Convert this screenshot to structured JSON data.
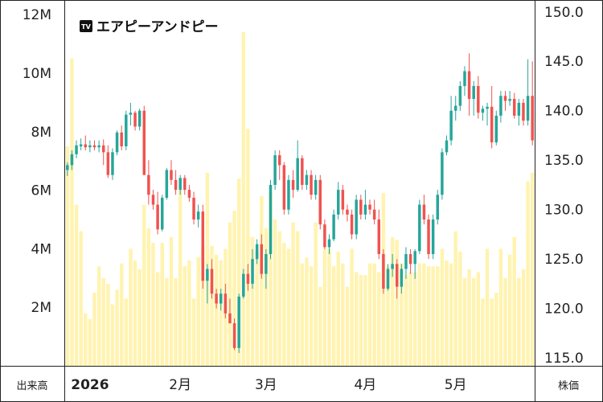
{
  "brand": {
    "name": "エアピーアンドピー",
    "logo_text": "TV",
    "logo_icon": "tradingview-logo-icon"
  },
  "colors": {
    "up": "#26a69a",
    "down": "#ef5350",
    "volume": "#fff3b0",
    "grid": "#222222",
    "background": "#ffffff"
  },
  "chart_data": {
    "type": "candlestick",
    "title": "エアピーアンドピー",
    "xlabel": "",
    "left_axis_label": "出来高",
    "right_axis_label": "株価",
    "left_ticks": [
      "2M",
      "4M",
      "6M",
      "8M",
      "10M",
      "12M"
    ],
    "left_tick_values": [
      2,
      4,
      6,
      8,
      10,
      12
    ],
    "volume_range": [
      0,
      12.5
    ],
    "right_ticks": [
      "115.0",
      "120.0",
      "125.0",
      "130.0",
      "135.0",
      "140.0",
      "145.0",
      "150.0"
    ],
    "right_tick_values": [
      115,
      120,
      125,
      130,
      135,
      140,
      145,
      150
    ],
    "price_range": [
      114.2,
      151.2
    ],
    "x_ticks": [
      {
        "label": "2026",
        "index": 5,
        "bold": true
      },
      {
        "label": "2月",
        "index": 25
      },
      {
        "label": "3月",
        "index": 44
      },
      {
        "label": "4月",
        "index": 66
      },
      {
        "label": "5月",
        "index": 86
      }
    ],
    "ohlc": [
      [
        134,
        134.8,
        133.4,
        134.5
      ],
      [
        134.5,
        136,
        134,
        135.6
      ],
      [
        135.6,
        137,
        135.2,
        136.5
      ],
      [
        136.4,
        137.2,
        136,
        136.6
      ],
      [
        136.6,
        137.5,
        136,
        136.3
      ],
      [
        136.3,
        137,
        135.8,
        136.5
      ],
      [
        136.5,
        137,
        136,
        136.3
      ],
      [
        136.3,
        137,
        135.8,
        136.5
      ],
      [
        136.5,
        137.1,
        134.5,
        135.8
      ],
      [
        135.8,
        136.5,
        133.2,
        133.5
      ],
      [
        133.5,
        136.2,
        133,
        135.8
      ],
      [
        135.8,
        138,
        135.5,
        137.8
      ],
      [
        137.8,
        138.5,
        136,
        136.4
      ],
      [
        136.4,
        140,
        136,
        139.6
      ],
      [
        139.6,
        140.8,
        138.5,
        139.8
      ],
      [
        139.8,
        140,
        138,
        138.4
      ],
      [
        138.4,
        140.2,
        138,
        140
      ],
      [
        140,
        140.5,
        133.5,
        133.5
      ],
      [
        133.5,
        135,
        130.5,
        131.5
      ],
      [
        131.5,
        132,
        130,
        130.5
      ],
      [
        130.5,
        131.8,
        127.5,
        128
      ],
      [
        128,
        131.5,
        127.8,
        131.2
      ],
      [
        131.2,
        134.2,
        131,
        134
      ],
      [
        134,
        135,
        132.5,
        133
      ],
      [
        133,
        134,
        131.5,
        132
      ],
      [
        132,
        133.5,
        131.5,
        133.2
      ],
      [
        133.2,
        133.5,
        131.5,
        132
      ],
      [
        132,
        132.5,
        130.8,
        131.2
      ],
      [
        131.2,
        131.8,
        128.5,
        129
      ],
      [
        129,
        130.5,
        128.2,
        129.8
      ],
      [
        129.8,
        130.5,
        122,
        122.8
      ],
      [
        122.8,
        124.5,
        120.5,
        124
      ],
      [
        124,
        125,
        121,
        121.5
      ],
      [
        121.5,
        122,
        120,
        120.5
      ],
      [
        120.5,
        122,
        119.8,
        121.5
      ],
      [
        121.5,
        122.5,
        119,
        119.5
      ],
      [
        119.5,
        121,
        118.5,
        118.5
      ],
      [
        118.5,
        119,
        115.8,
        116
      ],
      [
        116,
        121.5,
        115.5,
        121.2
      ],
      [
        121.2,
        124,
        121,
        123.5
      ],
      [
        123.5,
        124.5,
        121.8,
        122.5
      ],
      [
        122.5,
        126,
        122,
        125
      ],
      [
        125,
        127,
        124.5,
        126.5
      ],
      [
        126.5,
        127.5,
        123,
        123.5
      ],
      [
        123.5,
        126,
        122,
        125.5
      ],
      [
        125.5,
        133,
        125,
        132.5
      ],
      [
        132.5,
        136,
        132,
        135.5
      ],
      [
        135.5,
        136,
        133,
        134.5
      ],
      [
        134.5,
        134.8,
        129.5,
        130
      ],
      [
        130,
        133.5,
        129.5,
        133
      ],
      [
        133,
        134,
        131.2,
        132
      ],
      [
        132,
        137,
        131.8,
        135.2
      ],
      [
        135.2,
        135.5,
        132,
        132.5
      ],
      [
        132.5,
        134,
        132,
        133.5
      ],
      [
        133.5,
        134,
        131,
        131.5
      ],
      [
        131.5,
        133.5,
        131,
        133
      ],
      [
        133,
        133.5,
        128,
        128.5
      ],
      [
        128.5,
        129,
        126,
        126.2
      ],
      [
        126.2,
        127.5,
        125.5,
        127
      ],
      [
        127,
        130,
        126.8,
        129.5
      ],
      [
        129.5,
        132.8,
        129,
        132
      ],
      [
        132,
        132.5,
        129.5,
        130
      ],
      [
        130,
        130.5,
        128.8,
        129.5
      ],
      [
        129.5,
        130,
        127,
        127.5
      ],
      [
        127.5,
        131.5,
        127,
        131
      ],
      [
        131,
        131.5,
        129,
        129.5
      ],
      [
        129.5,
        132,
        129,
        130.5
      ],
      [
        130.5,
        131,
        129.5,
        130
      ],
      [
        130,
        131,
        128.5,
        129
      ],
      [
        129,
        130,
        125,
        125.5
      ],
      [
        125.5,
        126,
        121.5,
        122
      ],
      [
        122,
        124.5,
        121.8,
        124
      ],
      [
        124,
        125.5,
        123.2,
        124.5
      ],
      [
        124.5,
        125,
        121,
        122.2
      ],
      [
        122.2,
        124.5,
        121.5,
        124
      ],
      [
        124,
        126.2,
        123,
        125.5
      ],
      [
        125.5,
        126,
        123.5,
        124.5
      ],
      [
        124.5,
        126,
        123,
        125.8
      ],
      [
        125.8,
        131,
        125.5,
        130.5
      ],
      [
        130.5,
        131.5,
        128.5,
        129
      ],
      [
        129,
        129.5,
        125,
        125.5
      ],
      [
        125.5,
        129.5,
        125,
        129
      ],
      [
        129,
        132,
        128.5,
        131.5
      ],
      [
        131.5,
        136.2,
        131,
        135.8
      ],
      [
        135.8,
        137.5,
        135.5,
        137
      ],
      [
        137,
        141.5,
        136.5,
        140
      ],
      [
        140,
        141.5,
        139,
        140.5
      ],
      [
        140.5,
        143,
        140,
        142.5
      ],
      [
        142.5,
        144.5,
        141.5,
        144
      ],
      [
        144,
        145.8,
        139.5,
        141.2
      ],
      [
        141.2,
        143,
        139.5,
        142.5
      ],
      [
        142.5,
        143.5,
        139.2,
        139.8
      ],
      [
        139.8,
        140.5,
        139,
        140.2
      ],
      [
        140.2,
        140.8,
        138.5,
        140.4
      ],
      [
        140.4,
        142.5,
        136.2,
        136.8
      ],
      [
        136.8,
        140,
        136.5,
        139.5
      ],
      [
        139.5,
        142,
        138.8,
        141.5
      ],
      [
        141.5,
        142,
        140,
        141
      ],
      [
        141,
        142,
        140.5,
        141.2
      ],
      [
        141.2,
        141.8,
        139.2,
        139.5
      ],
      [
        139.5,
        141.2,
        138.5,
        140.8
      ],
      [
        140.8,
        141.2,
        138.5,
        139
      ],
      [
        139,
        145.2,
        138.5,
        141.5
      ],
      [
        141.5,
        145,
        136.5,
        137
      ]
    ],
    "volume": [
      7.5,
      10.5,
      5.5,
      4.6,
      1.8,
      1.6,
      2.5,
      3.4,
      3.0,
      2.8,
      2.1,
      2.6,
      3.5,
      2.3,
      4.0,
      3.6,
      3.3,
      5.5,
      4.7,
      4.2,
      3.2,
      4.2,
      3.0,
      4.4,
      3.0,
      6.0,
      3.4,
      3.6,
      2.3,
      3.7,
      4.1,
      6.6,
      4.1,
      3.8,
      3.6,
      4.0,
      4.9,
      5.3,
      6.4,
      11.4,
      8.1,
      4.4,
      3.9,
      5.8,
      4.7,
      5.9,
      5.0,
      4.6,
      4.2,
      4.0,
      4.9,
      4.6,
      3.5,
      3.7,
      3.4,
      4.9,
      2.7,
      4.0,
      4.0,
      3.4,
      3.9,
      3.5,
      2.7,
      4.0,
      3.2,
      3.1,
      3.1,
      3.5,
      3.5,
      3.2,
      5.9,
      3.4,
      4.4,
      4.3,
      3.5,
      3.1,
      3.2,
      3.2,
      3.5,
      3.5,
      3.4,
      3.4,
      3.4,
      4.0,
      3.6,
      3.5,
      4.6,
      3.9,
      3.0,
      3.3,
      3.0,
      3.2,
      2.3,
      4.0,
      2.3,
      2.5,
      4.0,
      3.0,
      3.8,
      4.4,
      3.0,
      3.3,
      6.3,
      6.6
    ]
  }
}
